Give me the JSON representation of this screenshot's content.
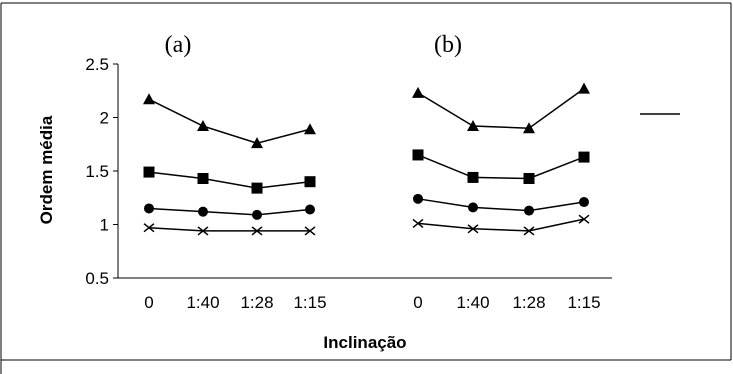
{
  "chart_data": {
    "type": "line",
    "xlabel": "Inclinação",
    "ylabel": "Ordem média",
    "ylim": [
      0.5,
      2.5
    ],
    "yticks": [
      0.5,
      1,
      1.5,
      2,
      2.5
    ],
    "categories": [
      "0",
      "1:40",
      "1:28",
      "1:15"
    ],
    "legend": "right",
    "panels": [
      {
        "label": "(a)",
        "series": [
          {
            "marker": "triangle",
            "values": [
              2.17,
              1.92,
              1.76,
              1.89
            ]
          },
          {
            "marker": "square",
            "values": [
              1.49,
              1.43,
              1.34,
              1.4
            ]
          },
          {
            "marker": "circle",
            "values": [
              1.15,
              1.12,
              1.09,
              1.14
            ]
          },
          {
            "marker": "x",
            "values": [
              0.97,
              0.94,
              0.94,
              0.94
            ]
          }
        ]
      },
      {
        "label": "(b)",
        "series": [
          {
            "marker": "triangle",
            "values": [
              2.23,
              1.92,
              1.9,
              2.27
            ]
          },
          {
            "marker": "square",
            "values": [
              1.65,
              1.44,
              1.43,
              1.63
            ]
          },
          {
            "marker": "circle",
            "values": [
              1.24,
              1.16,
              1.13,
              1.21
            ]
          },
          {
            "marker": "x",
            "values": [
              1.01,
              0.96,
              0.94,
              1.05
            ]
          }
        ]
      }
    ]
  }
}
